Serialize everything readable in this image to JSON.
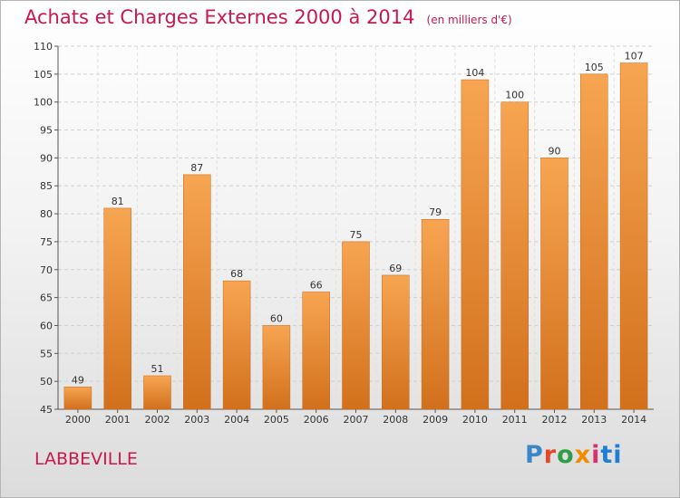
{
  "chart_data": {
    "type": "bar",
    "title": "Achats et Charges Externes 2000 à 2014",
    "subtitle": "(en milliers d'€)",
    "categories": [
      "2000",
      "2001",
      "2002",
      "2003",
      "2004",
      "2005",
      "2006",
      "2007",
      "2008",
      "2009",
      "2010",
      "2011",
      "2012",
      "2013",
      "2014"
    ],
    "values": [
      49,
      81,
      51,
      87,
      68,
      60,
      66,
      75,
      69,
      79,
      104,
      100,
      90,
      105,
      107
    ],
    "ylim": [
      45,
      110
    ],
    "yticks": [
      45,
      50,
      55,
      60,
      65,
      70,
      75,
      80,
      85,
      90,
      95,
      100,
      105,
      110
    ],
    "grid": true,
    "colors": {
      "bar_light": "#f7a552",
      "bar_dark": "#d2701c",
      "title": "#c8184e"
    }
  },
  "commune": "LABBEVILLE",
  "brand": [
    "P",
    "r",
    "o",
    "x",
    "i",
    "ti"
  ]
}
